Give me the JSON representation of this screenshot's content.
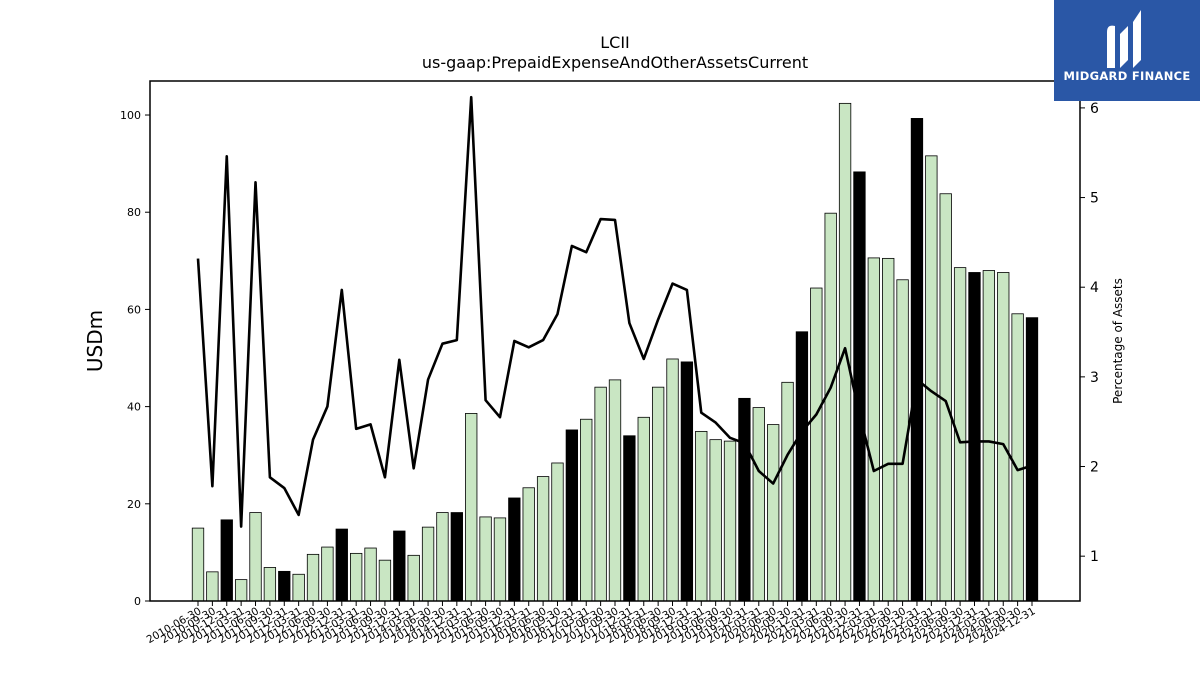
{
  "chart_data": {
    "type": "bar",
    "title": "LCII",
    "subtitle": "us-gaap:PrepaidExpenseAndOtherAssetsCurrent",
    "ylabel": "USDm",
    "y2label": "Percentage of Assets",
    "ylim": [
      0,
      107
    ],
    "y2lim": [
      0.5,
      6.3
    ],
    "yticks": [
      "0",
      "20",
      "40",
      "60",
      "80",
      "100"
    ],
    "y2ticks": [
      "1",
      "2",
      "3",
      "4",
      "5",
      "6"
    ],
    "x_tick_labels": [
      "2010-06-30",
      "2010-09-30",
      "2010-12-31",
      "2011-03-31",
      "2011-06-30",
      "2011-09-30",
      "2011-12-31",
      "2012-03-31",
      "2012-06-30",
      "2012-09-30",
      "2012-12-31",
      "2013-03-31",
      "2013-06-30",
      "2013-09-30",
      "2013-12-31",
      "2014-03-31",
      "2014-06-30",
      "2014-09-30",
      "2014-12-31",
      "2015-03-31",
      "2015-06-30",
      "2015-09-30",
      "2015-12-31",
      "2016-03-31",
      "2016-06-30",
      "2016-09-30",
      "2016-12-31",
      "2017-03-31",
      "2017-06-30",
      "2017-09-30",
      "2017-12-31",
      "2018-03-31",
      "2018-06-30",
      "2018-09-30",
      "2018-12-31",
      "2019-03-31",
      "2019-06-30",
      "2019-09-30",
      "2019-12-31",
      "2020-03-31",
      "2020-06-30",
      "2020-09-30",
      "2020-12-31",
      "2021-03-31",
      "2021-06-30",
      "2021-09-30",
      "2021-12-31",
      "2022-03-31",
      "2022-06-30",
      "2022-09-30",
      "2022-12-31",
      "2023-03-31",
      "2023-06-30",
      "2023-09-30",
      "2023-12-31",
      "2024-03-31",
      "2024-06-30",
      "2024-09-30",
      "2024-12-31"
    ],
    "series": [
      {
        "type": "bar",
        "axis": "left",
        "values": [
          15.0,
          6.0,
          16.7,
          4.4,
          18.2,
          6.9,
          6.1,
          5.5,
          9.6,
          11.1,
          14.8,
          9.8,
          10.9,
          8.4,
          14.4,
          9.4,
          15.2,
          18.2,
          18.2,
          38.6,
          17.3,
          17.1,
          21.2,
          23.3,
          25.6,
          28.4,
          35.2,
          37.4,
          44.0,
          45.5,
          34.0,
          37.8,
          44.0,
          49.8,
          49.2,
          34.9,
          33.2,
          32.9,
          41.7,
          39.8,
          36.3,
          45.0,
          55.4,
          64.4,
          79.8,
          102.4,
          88.3,
          70.6,
          70.5,
          66.1,
          99.3,
          91.6,
          83.8,
          68.6,
          67.6,
          68.0,
          67.6,
          59.1,
          58.3
        ],
        "highlight": [
          false,
          false,
          true,
          false,
          false,
          false,
          true,
          false,
          false,
          false,
          true,
          false,
          false,
          false,
          true,
          false,
          false,
          false,
          true,
          false,
          false,
          false,
          true,
          false,
          false,
          false,
          true,
          false,
          false,
          false,
          true,
          false,
          false,
          false,
          true,
          false,
          false,
          false,
          true,
          false,
          false,
          false,
          true,
          false,
          false,
          false,
          true,
          false,
          false,
          false,
          true,
          false,
          false,
          false,
          true,
          false,
          false,
          false,
          true
        ],
        "color": "#c9e6c3",
        "highlight_color": "#000000"
      },
      {
        "type": "line",
        "axis": "right",
        "values": [
          4.32,
          1.78,
          5.46,
          1.33,
          5.17,
          1.88,
          1.76,
          1.46,
          2.3,
          2.67,
          3.97,
          2.42,
          2.47,
          1.88,
          3.19,
          1.98,
          2.97,
          3.37,
          3.41,
          6.12,
          2.74,
          2.55,
          3.4,
          3.33,
          3.41,
          3.7,
          4.46,
          4.39,
          4.76,
          4.75,
          3.6,
          3.2,
          3.64,
          4.04,
          3.97,
          2.6,
          2.49,
          2.32,
          2.26,
          1.95,
          1.81,
          2.13,
          2.39,
          2.58,
          2.88,
          3.32,
          2.58,
          1.95,
          2.03,
          2.03,
          2.97,
          2.84,
          2.73,
          2.27,
          2.28,
          2.28,
          2.25,
          1.96,
          2.01
        ],
        "color": "#000000"
      }
    ]
  },
  "logo": {
    "text": "MIDGARD FINANCE",
    "background": "#2a57a6"
  }
}
